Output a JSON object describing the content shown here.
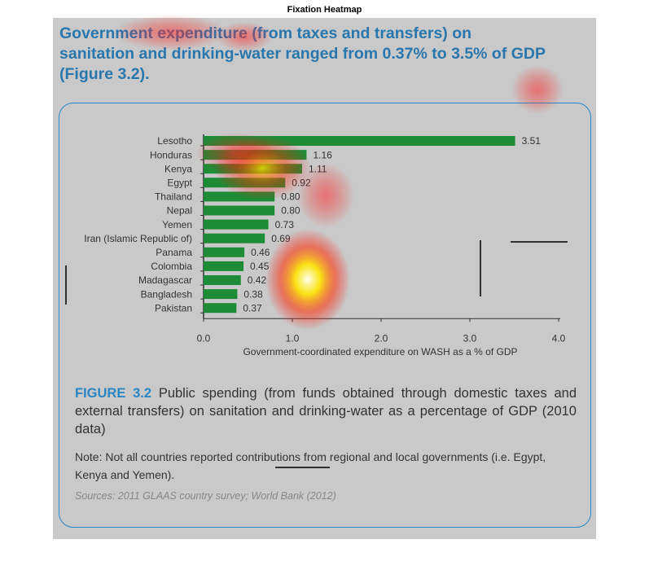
{
  "page_title": "Fixation Heatmap",
  "headline": "Government expenditure (from taxes and transfers) on sanitation and drinking-water ranged from 0.37% to 3.5% of GDP (Figure 3.2).",
  "chart_data": {
    "type": "bar",
    "orientation": "horizontal",
    "categories": [
      "Lesotho",
      "Honduras",
      "Kenya",
      "Egypt",
      "Thailand",
      "Nepal",
      "Yemen",
      "Iran (Islamic Republic of)",
      "Panama",
      "Colombia",
      "Madagascar",
      "Bangladesh",
      "Pakistan"
    ],
    "values": [
      3.51,
      1.16,
      1.11,
      0.92,
      0.8,
      0.8,
      0.73,
      0.69,
      0.46,
      0.45,
      0.42,
      0.38,
      0.37
    ],
    "value_labels": [
      "3.51",
      "1.16",
      "1.11",
      "0.92",
      "0.80",
      "0.80",
      "0.73",
      "0.69",
      "0.46",
      "0.45",
      "0.42",
      "0.38",
      "0.37"
    ],
    "color": "#1e8c37",
    "xlim": [
      0,
      4
    ],
    "xticks": [
      {
        "value": 0,
        "label": "0.0"
      },
      {
        "value": 1,
        "label": "1.0"
      },
      {
        "value": 2,
        "label": "2.0"
      },
      {
        "value": 3,
        "label": "3.0"
      },
      {
        "value": 4,
        "label": "4.0"
      }
    ],
    "xlabel": "Government-coordinated expenditure on WASH as a % of GDP"
  },
  "caption_label": "FIGURE 3.2",
  "caption_text": "Public spending (from funds obtained through domestic taxes and external transfers) on sanitation and drinking-water as a percentage of GDP (2010 data)",
  "note": "Note: Not all countries reported contributions from regional and local governments (i.e. Egypt, Kenya and Yemen).",
  "sources": "Sources: 2011 GLAAS country survey; World Bank (2012)"
}
